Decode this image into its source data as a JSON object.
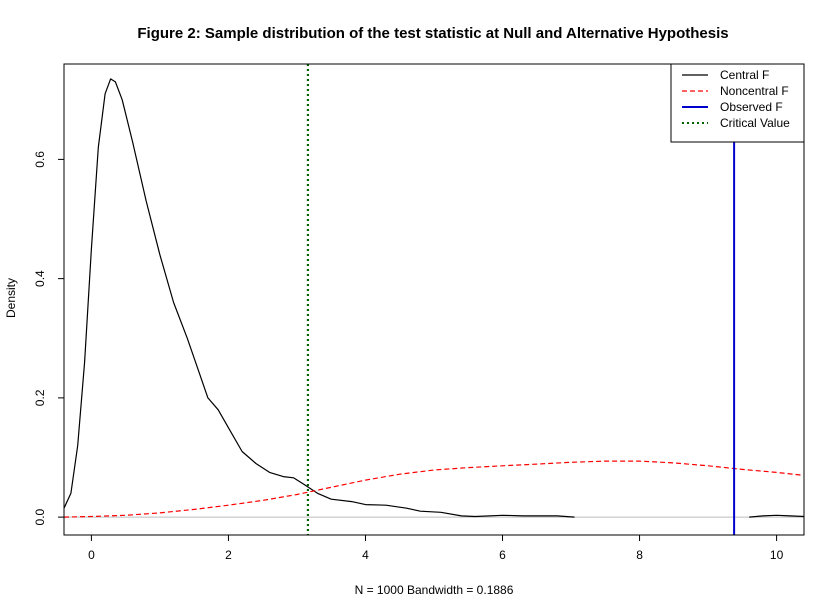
{
  "chart_data": {
    "type": "line",
    "title": "Figure 2: Sample distribution of the test statistic at Null and Alternative Hypothesis",
    "xlabel": "N = 1000   Bandwidth = 0.1886",
    "ylabel": "Density",
    "xlim": [
      -0.4,
      10.4
    ],
    "ylim": [
      -0.03,
      0.76
    ],
    "x_ticks": [
      "0",
      "2",
      "4",
      "6",
      "8",
      "10"
    ],
    "y_ticks": [
      "0.0",
      "0.2",
      "0.4",
      "0.6"
    ],
    "grid": false,
    "legend_position": "top-right",
    "series": [
      {
        "name": "Central F",
        "color": "#000000",
        "style": "solid",
        "segments": [
          [
            [
              -0.4,
              0.015
            ],
            [
              -0.3,
              0.04
            ],
            [
              -0.2,
              0.12
            ],
            [
              -0.1,
              0.26
            ],
            [
              0.0,
              0.45
            ],
            [
              0.1,
              0.62
            ],
            [
              0.2,
              0.71
            ],
            [
              0.28,
              0.735
            ],
            [
              0.35,
              0.73
            ],
            [
              0.45,
              0.7
            ],
            [
              0.6,
              0.63
            ],
            [
              0.8,
              0.53
            ],
            [
              1.0,
              0.44
            ],
            [
              1.2,
              0.36
            ],
            [
              1.4,
              0.3
            ],
            [
              1.55,
              0.25
            ],
            [
              1.7,
              0.2
            ],
            [
              1.85,
              0.18
            ],
            [
              2.0,
              0.15
            ],
            [
              2.2,
              0.11
            ],
            [
              2.4,
              0.09
            ],
            [
              2.6,
              0.075
            ],
            [
              2.8,
              0.068
            ],
            [
              2.95,
              0.066
            ],
            [
              3.1,
              0.055
            ],
            [
              3.3,
              0.04
            ],
            [
              3.5,
              0.03
            ],
            [
              3.8,
              0.026
            ],
            [
              4.0,
              0.021
            ],
            [
              4.3,
              0.02
            ],
            [
              4.6,
              0.015
            ],
            [
              4.8,
              0.01
            ],
            [
              5.1,
              0.008
            ],
            [
              5.4,
              0.002
            ],
            [
              5.6,
              0.001
            ],
            [
              6.0,
              0.003
            ],
            [
              6.3,
              0.002
            ],
            [
              6.6,
              0.002
            ],
            [
              6.8,
              0.002
            ],
            [
              7.05,
              0.0
            ]
          ],
          [
            [
              9.6,
              0.0
            ],
            [
              9.8,
              0.002
            ],
            [
              10.0,
              0.003
            ],
            [
              10.2,
              0.002
            ],
            [
              10.4,
              0.001
            ]
          ]
        ]
      },
      {
        "name": "Noncentral F",
        "color": "#ff0000",
        "style": "dashed",
        "segments": [
          [
            [
              -0.4,
              0.0
            ],
            [
              0.0,
              0.001
            ],
            [
              0.5,
              0.003
            ],
            [
              1.0,
              0.007
            ],
            [
              1.5,
              0.013
            ],
            [
              2.0,
              0.02
            ],
            [
              2.5,
              0.028
            ],
            [
              3.0,
              0.038
            ],
            [
              3.5,
              0.05
            ],
            [
              4.0,
              0.062
            ],
            [
              4.5,
              0.072
            ],
            [
              5.0,
              0.079
            ],
            [
              5.5,
              0.083
            ],
            [
              6.0,
              0.086
            ],
            [
              6.5,
              0.089
            ],
            [
              7.0,
              0.092
            ],
            [
              7.5,
              0.094
            ],
            [
              8.0,
              0.094
            ],
            [
              8.5,
              0.091
            ],
            [
              9.0,
              0.086
            ],
            [
              9.5,
              0.08
            ],
            [
              10.0,
              0.075
            ],
            [
              10.4,
              0.07
            ]
          ]
        ]
      }
    ],
    "vertical_lines": [
      {
        "name": "Observed F",
        "x": 9.38,
        "color": "#0000cc",
        "style": "solid"
      },
      {
        "name": "Critical Value",
        "x": 3.16,
        "color": "#006400",
        "style": "dotted"
      }
    ],
    "baseline_color": "#bebebe",
    "legend": [
      "Central F",
      "Noncentral F",
      "Observed F",
      "Critical Value"
    ]
  }
}
